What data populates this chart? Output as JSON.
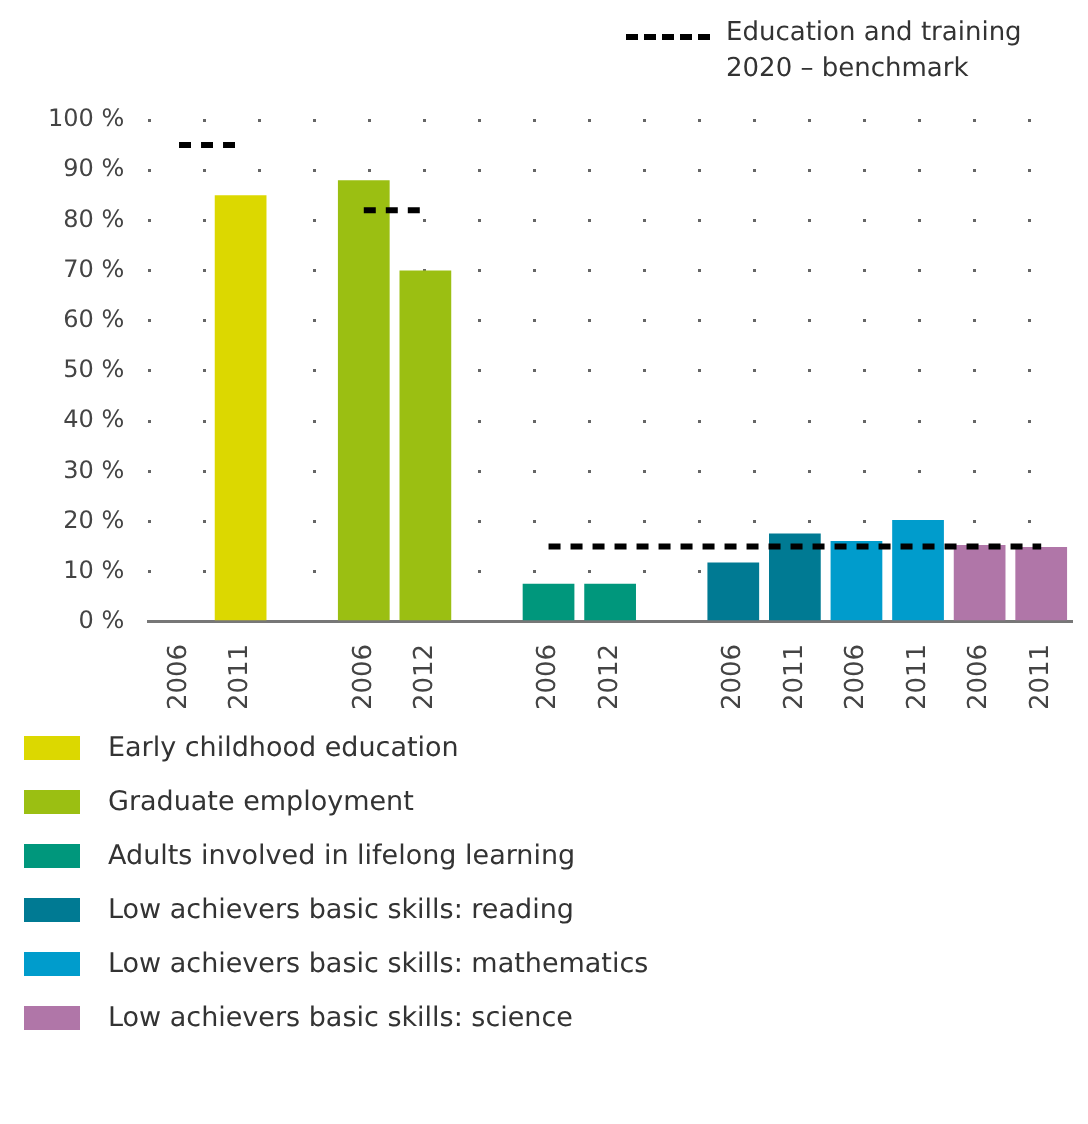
{
  "chart_data": {
    "type": "bar",
    "categories": [
      "2006",
      "2011",
      null,
      "2006",
      "2012",
      null,
      "2006",
      "2012",
      null,
      "2006",
      "2011",
      "2006",
      "2011",
      "2006",
      "2011"
    ],
    "series": [
      {
        "name": "Early childhood education",
        "color": "#dcd800",
        "values": [
          null,
          85,
          null,
          null,
          null,
          null,
          null,
          null,
          null,
          null,
          null,
          null,
          null,
          null,
          null
        ]
      },
      {
        "name": "Graduate employment",
        "color": "#9bbf12",
        "values": [
          null,
          null,
          null,
          88,
          70,
          null,
          null,
          null,
          null,
          null,
          null,
          null,
          null,
          null,
          null
        ]
      },
      {
        "name": "Adults involved in lifelong learning",
        "color": "#00977c",
        "values": [
          null,
          null,
          null,
          null,
          null,
          null,
          7.6,
          7.6,
          null,
          null,
          null,
          null,
          null,
          null,
          null
        ]
      },
      {
        "name": "Low achievers basic skills: reading",
        "color": "#007a93",
        "values": [
          null,
          null,
          null,
          null,
          null,
          null,
          null,
          null,
          null,
          11.8,
          17.6,
          null,
          null,
          null,
          null
        ]
      },
      {
        "name": "Low achievers basic skills: mathematics",
        "color": "#009ccc",
        "values": [
          null,
          null,
          null,
          null,
          null,
          null,
          null,
          null,
          null,
          null,
          null,
          16.1,
          20.3,
          null,
          null
        ]
      },
      {
        "name": "Low achievers basic skills: science",
        "color": "#b076a8",
        "values": [
          null,
          null,
          null,
          null,
          null,
          null,
          null,
          null,
          null,
          null,
          null,
          null,
          null,
          15.3,
          14.9
        ]
      },
      {
        "name": "Education and training 2020 – benchmark",
        "type": "line",
        "color": "#000000",
        "line_style": "dashed",
        "marker": "none",
        "values": [
          95,
          95,
          null,
          82,
          82,
          null,
          15,
          15,
          15,
          15,
          15,
          15,
          15,
          15,
          15
        ]
      }
    ],
    "ylim": [
      0,
      100
    ],
    "yticks": [
      {
        "value": 0,
        "label": "0 %"
      },
      {
        "value": 10,
        "label": "10 %"
      },
      {
        "value": 20,
        "label": "20 %"
      },
      {
        "value": 30,
        "label": "30 %"
      },
      {
        "value": 40,
        "label": "40 %"
      },
      {
        "value": 50,
        "label": "50 %"
      },
      {
        "value": 60,
        "label": "60 %"
      },
      {
        "value": 70,
        "label": "70 %"
      },
      {
        "value": 80,
        "label": "80 %"
      },
      {
        "value": 90,
        "label": "90 %"
      },
      {
        "value": 100,
        "label": "100 %"
      }
    ],
    "grid": "y",
    "legend": "bottom"
  }
}
